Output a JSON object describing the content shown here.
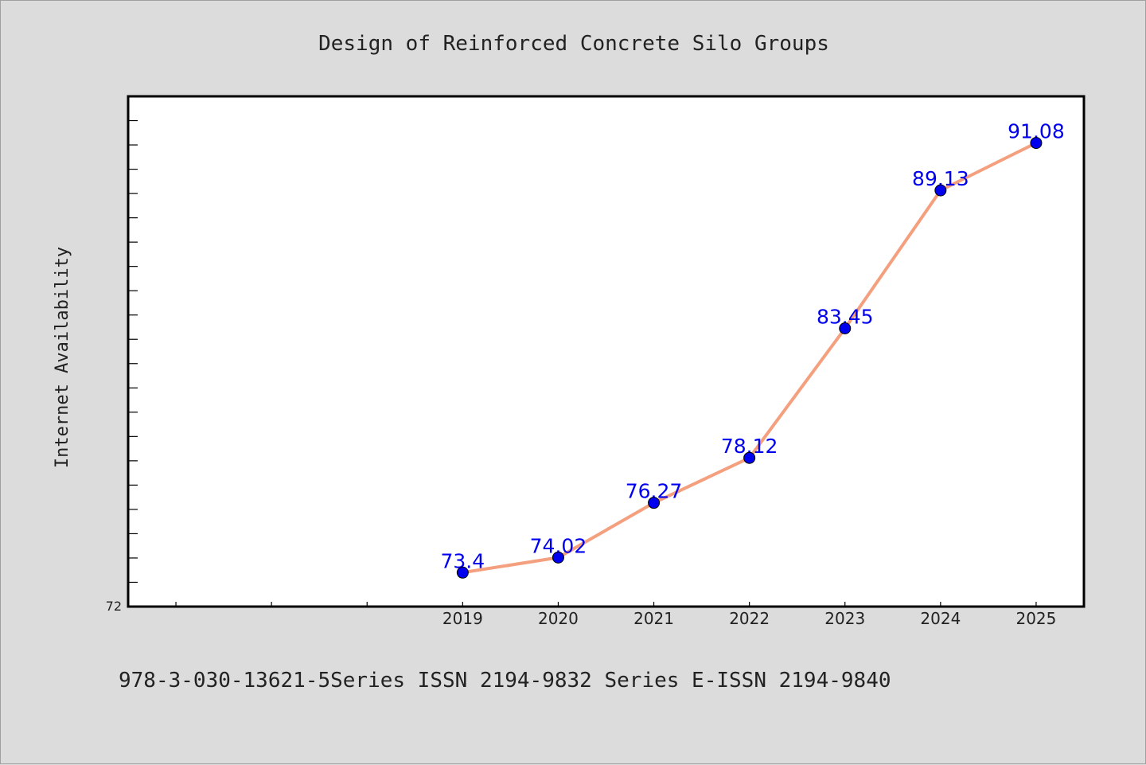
{
  "chart_data": {
    "type": "line",
    "title": "Design of Reinforced Concrete Silo Groups",
    "ylabel": "Internet Availability",
    "xlabel": "",
    "categories": [
      "2019",
      "2020",
      "2021",
      "2022",
      "2023",
      "2024",
      "2025"
    ],
    "series": [
      {
        "values": [
          73.4,
          74.02,
          76.27,
          78.12,
          83.45,
          89.13,
          91.08
        ],
        "labels": [
          "73.4",
          "74.02",
          "76.27",
          "78.12",
          "83.45",
          "89.13",
          "91.08"
        ]
      }
    ],
    "y_tick_label": "72",
    "ylim": [
      72,
      93.0
    ],
    "x_slots": 10,
    "grid": false,
    "legend": "none",
    "colors": {
      "line": "#f4a07e",
      "marker": "#0000ee",
      "data_label": "#0000ee",
      "plot_bg": "#ffffff",
      "page_bg": "#dcdcdc"
    }
  },
  "footer": {
    "text": "978-3-030-13621-5Series ISSN 2194-9832 Series E-ISSN 2194-9840"
  }
}
